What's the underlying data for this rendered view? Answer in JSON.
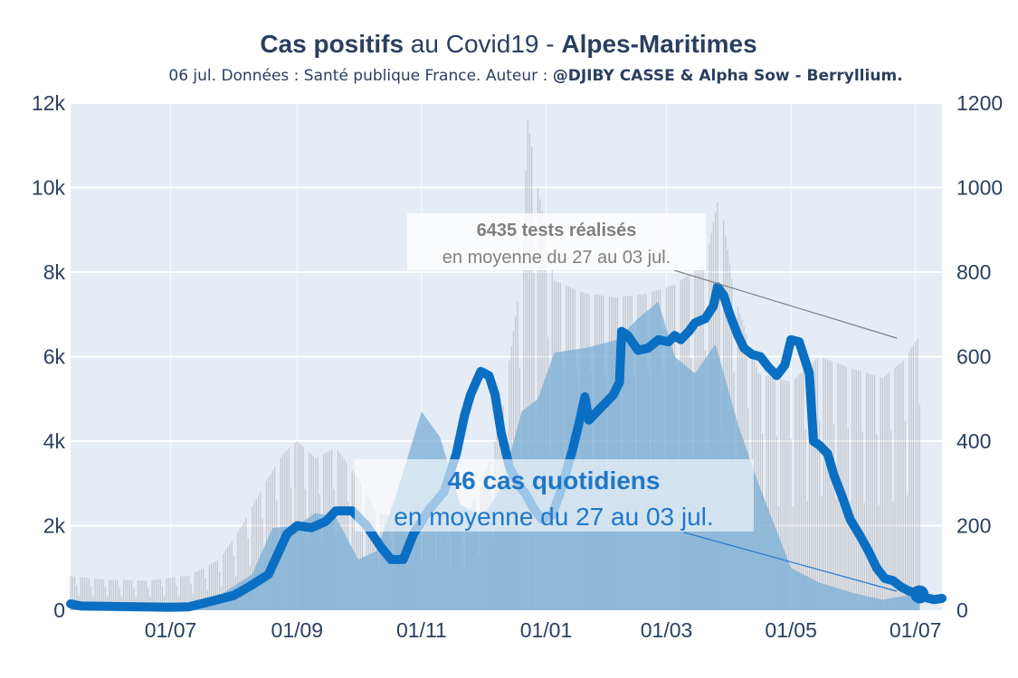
{
  "title": {
    "part1": "Cas positifs",
    "part2": " au Covid19 - ",
    "part3": "Alpes-Maritimes"
  },
  "subtitle": {
    "text": "06 jul. Données : Santé publique France. Auteur : ",
    "author": "@DJIBY CASSE & Alpha Sow - Berryllium."
  },
  "annotations": {
    "tests": {
      "bold": "6435 tests réalisés",
      "line2": "en moyenne du 27 au 03 jul."
    },
    "cases": {
      "bold": "46 cas quotidiens",
      "line2": "en moyenne du 27 au 03 jul."
    }
  },
  "colors": {
    "cases_line": "#0a6fc2",
    "tests_bars": "#a8a8a8",
    "cases_bars": "#7aaed6",
    "plot_bg": "#e5ecf6",
    "grid": "#ffffff",
    "text": "#2a3f5f"
  },
  "chart_data": {
    "type": "line",
    "x_range": [
      "2020-05-13",
      "2021-07-14"
    ],
    "x_ticks": [
      {
        "date": "2020-07-01",
        "label": "01/07"
      },
      {
        "date": "2020-09-01",
        "label": "01/09"
      },
      {
        "date": "2020-11-01",
        "label": "01/11"
      },
      {
        "date": "2021-01-01",
        "label": "01/01"
      },
      {
        "date": "2021-03-01",
        "label": "01/03"
      },
      {
        "date": "2021-05-01",
        "label": "01/05"
      },
      {
        "date": "2021-07-01",
        "label": "01/07"
      }
    ],
    "y_left": {
      "range": [
        0,
        12000
      ],
      "ticks": [
        0,
        2000,
        4000,
        6000,
        8000,
        10000,
        12000
      ],
      "tick_labels": [
        "0",
        "2k",
        "4k",
        "6k",
        "8k",
        "10k",
        "12k"
      ]
    },
    "y_right": {
      "range": [
        0,
        1200
      ],
      "ticks": [
        0,
        200,
        400,
        600,
        800,
        1000,
        1200
      ],
      "tick_labels": [
        "0",
        "200",
        "400",
        "600",
        "800",
        "1000",
        "1200"
      ]
    },
    "grid": true,
    "legend": "none",
    "series": [
      {
        "axis": "left",
        "style": "bars",
        "points": [
          [
            "2020-05-13",
            800
          ],
          [
            "2020-06-01",
            720
          ],
          [
            "2020-06-20",
            700
          ],
          [
            "2020-07-10",
            820
          ],
          [
            "2020-07-25",
            1200
          ],
          [
            "2020-08-05",
            2000
          ],
          [
            "2020-08-15",
            2900
          ],
          [
            "2020-08-25",
            3700
          ],
          [
            "2020-09-01",
            4000
          ],
          [
            "2020-09-10",
            3600
          ],
          [
            "2020-09-20",
            3850
          ],
          [
            "2020-10-01",
            3100
          ],
          [
            "2020-10-10",
            2300
          ],
          [
            "2020-10-20",
            2200
          ],
          [
            "2020-11-01",
            2600
          ],
          [
            "2020-11-10",
            2400
          ],
          [
            "2020-11-20",
            2000
          ],
          [
            "2020-12-01",
            3000
          ],
          [
            "2020-12-10",
            4500
          ],
          [
            "2020-12-20",
            8000
          ],
          [
            "2020-12-23",
            11600
          ],
          [
            "2020-12-28",
            10000
          ],
          [
            "2021-01-05",
            7800
          ],
          [
            "2021-01-20",
            7500
          ],
          [
            "2021-02-05",
            7400
          ],
          [
            "2021-02-20",
            7500
          ],
          [
            "2021-03-05",
            7700
          ],
          [
            "2021-03-20",
            8200
          ],
          [
            "2021-03-27",
            9900
          ],
          [
            "2021-04-03",
            7500
          ],
          [
            "2021-04-15",
            5600
          ],
          [
            "2021-05-01",
            5400
          ],
          [
            "2021-05-15",
            6000
          ],
          [
            "2021-06-01",
            5700
          ],
          [
            "2021-06-15",
            5500
          ],
          [
            "2021-06-25",
            5900
          ],
          [
            "2021-07-03",
            6500
          ]
        ]
      },
      {
        "axis": "right",
        "style": "area",
        "points": [
          [
            "2020-05-13",
            14
          ],
          [
            "2020-06-01",
            10
          ],
          [
            "2020-06-20",
            8
          ],
          [
            "2020-07-10",
            10
          ],
          [
            "2020-07-25",
            35
          ],
          [
            "2020-08-10",
            85
          ],
          [
            "2020-08-20",
            195
          ],
          [
            "2020-09-01",
            200
          ],
          [
            "2020-09-10",
            230
          ],
          [
            "2020-09-20",
            220
          ],
          [
            "2020-10-01",
            120
          ],
          [
            "2020-10-10",
            140
          ],
          [
            "2020-10-20",
            280
          ],
          [
            "2020-11-01",
            470
          ],
          [
            "2020-11-10",
            410
          ],
          [
            "2020-11-20",
            250
          ],
          [
            "2020-12-01",
            220
          ],
          [
            "2020-12-10",
            290
          ],
          [
            "2020-12-20",
            470
          ],
          [
            "2020-12-28",
            500
          ],
          [
            "2021-01-05",
            610
          ],
          [
            "2021-01-20",
            620
          ],
          [
            "2021-02-05",
            640
          ],
          [
            "2021-02-15",
            690
          ],
          [
            "2021-02-25",
            730
          ],
          [
            "2021-03-05",
            600
          ],
          [
            "2021-03-15",
            560
          ],
          [
            "2021-03-25",
            630
          ],
          [
            "2021-04-05",
            440
          ],
          [
            "2021-04-15",
            300
          ],
          [
            "2021-05-01",
            100
          ],
          [
            "2021-05-15",
            65
          ],
          [
            "2021-06-01",
            40
          ],
          [
            "2021-06-15",
            25
          ],
          [
            "2021-07-03",
            40
          ]
        ]
      },
      {
        "axis": "right",
        "style": "line",
        "points": [
          [
            "2020-05-13",
            15
          ],
          [
            "2020-05-18",
            10
          ],
          [
            "2020-06-01",
            9
          ],
          [
            "2020-06-15",
            8
          ],
          [
            "2020-07-01",
            7
          ],
          [
            "2020-07-10",
            8
          ],
          [
            "2020-07-20",
            20
          ],
          [
            "2020-08-01",
            35
          ],
          [
            "2020-08-10",
            60
          ],
          [
            "2020-08-18",
            85
          ],
          [
            "2020-08-27",
            180
          ],
          [
            "2020-09-01",
            200
          ],
          [
            "2020-09-08",
            195
          ],
          [
            "2020-09-15",
            210
          ],
          [
            "2020-09-20",
            235
          ],
          [
            "2020-09-28",
            235
          ],
          [
            "2020-10-05",
            200
          ],
          [
            "2020-10-12",
            150
          ],
          [
            "2020-10-17",
            120
          ],
          [
            "2020-10-23",
            120
          ],
          [
            "2020-10-28",
            180
          ],
          [
            "2020-11-05",
            240
          ],
          [
            "2020-11-12",
            280
          ],
          [
            "2020-11-18",
            370
          ],
          [
            "2020-11-22",
            460
          ],
          [
            "2020-11-25",
            510
          ],
          [
            "2020-11-30",
            565
          ],
          [
            "2020-12-04",
            555
          ],
          [
            "2020-12-07",
            510
          ],
          [
            "2020-12-10",
            420
          ],
          [
            "2020-12-14",
            340
          ],
          [
            "2020-12-18",
            300
          ],
          [
            "2020-12-22",
            275
          ],
          [
            "2020-12-26",
            240
          ],
          [
            "2020-12-30",
            215
          ],
          [
            "2021-01-04",
            225
          ],
          [
            "2021-01-08",
            280
          ],
          [
            "2021-01-14",
            380
          ],
          [
            "2021-01-18",
            460
          ],
          [
            "2021-01-20",
            505
          ],
          [
            "2021-01-22",
            450
          ],
          [
            "2021-01-26",
            470
          ],
          [
            "2021-01-30",
            490
          ],
          [
            "2021-02-03",
            510
          ],
          [
            "2021-02-06",
            540
          ],
          [
            "2021-02-07",
            660
          ],
          [
            "2021-02-10",
            650
          ],
          [
            "2021-02-15",
            615
          ],
          [
            "2021-02-20",
            620
          ],
          [
            "2021-02-25",
            640
          ],
          [
            "2021-03-02",
            635
          ],
          [
            "2021-03-05",
            650
          ],
          [
            "2021-03-08",
            640
          ],
          [
            "2021-03-12",
            660
          ],
          [
            "2021-03-15",
            680
          ],
          [
            "2021-03-20",
            690
          ],
          [
            "2021-03-24",
            720
          ],
          [
            "2021-03-26",
            765
          ],
          [
            "2021-03-29",
            745
          ],
          [
            "2021-04-01",
            700
          ],
          [
            "2021-04-05",
            650
          ],
          [
            "2021-04-08",
            620
          ],
          [
            "2021-04-12",
            605
          ],
          [
            "2021-04-16",
            600
          ],
          [
            "2021-04-20",
            575
          ],
          [
            "2021-04-24",
            555
          ],
          [
            "2021-04-28",
            580
          ],
          [
            "2021-05-01",
            640
          ],
          [
            "2021-05-05",
            635
          ],
          [
            "2021-05-10",
            560
          ],
          [
            "2021-05-12",
            400
          ],
          [
            "2021-05-15",
            390
          ],
          [
            "2021-05-19",
            370
          ],
          [
            "2021-05-22",
            320
          ],
          [
            "2021-05-26",
            270
          ],
          [
            "2021-05-30",
            215
          ],
          [
            "2021-06-04",
            175
          ],
          [
            "2021-06-08",
            140
          ],
          [
            "2021-06-12",
            100
          ],
          [
            "2021-06-16",
            75
          ],
          [
            "2021-06-20",
            70
          ],
          [
            "2021-06-24",
            55
          ],
          [
            "2021-06-28",
            45
          ],
          [
            "2021-07-02",
            40
          ],
          [
            "2021-07-06",
            30
          ],
          [
            "2021-07-10",
            25
          ],
          [
            "2021-07-14",
            28
          ]
        ]
      }
    ]
  }
}
